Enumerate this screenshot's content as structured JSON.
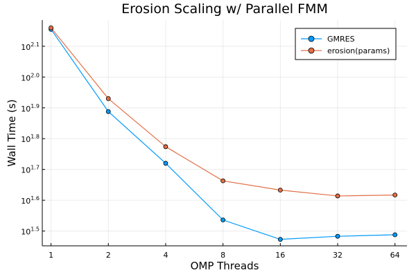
{
  "chart_data": {
    "type": "line",
    "title": "Erosion Scaling w/ Parallel FMM",
    "xlabel": "OMP Threads",
    "ylabel": "Wall Time (s)",
    "x": [
      1,
      2,
      4,
      8,
      16,
      32,
      64
    ],
    "x_scale": "log2",
    "y_scale": "log10",
    "xlim": [
      0.9,
      74
    ],
    "ylim_log10": [
      1.452,
      2.185
    ],
    "xticks": [
      "1",
      "2",
      "4",
      "8",
      "16",
      "32",
      64
    ],
    "yticks": [
      {
        "base": "10",
        "exp": "1.5",
        "log10": 1.5
      },
      {
        "base": "10",
        "exp": "1.6",
        "log10": 1.6
      },
      {
        "base": "10",
        "exp": "1.7",
        "log10": 1.7
      },
      {
        "base": "10",
        "exp": "1.8",
        "log10": 1.8
      },
      {
        "base": "10",
        "exp": "1.9",
        "log10": 1.9
      },
      {
        "base": "10",
        "exp": "2.0",
        "log10": 2.0
      },
      {
        "base": "10",
        "exp": "2.1",
        "log10": 2.1
      }
    ],
    "grid": true,
    "legend_position": "top-right",
    "series": [
      {
        "name": "GMRES",
        "color": "#009af9",
        "values_log10": [
          2.155,
          1.888,
          1.72,
          1.536,
          1.473,
          1.483,
          1.488
        ]
      },
      {
        "name": "erosion(params)",
        "color": "#e26f46",
        "values_log10": [
          2.16,
          1.93,
          1.774,
          1.663,
          1.633,
          1.614,
          1.617
        ]
      }
    ]
  }
}
